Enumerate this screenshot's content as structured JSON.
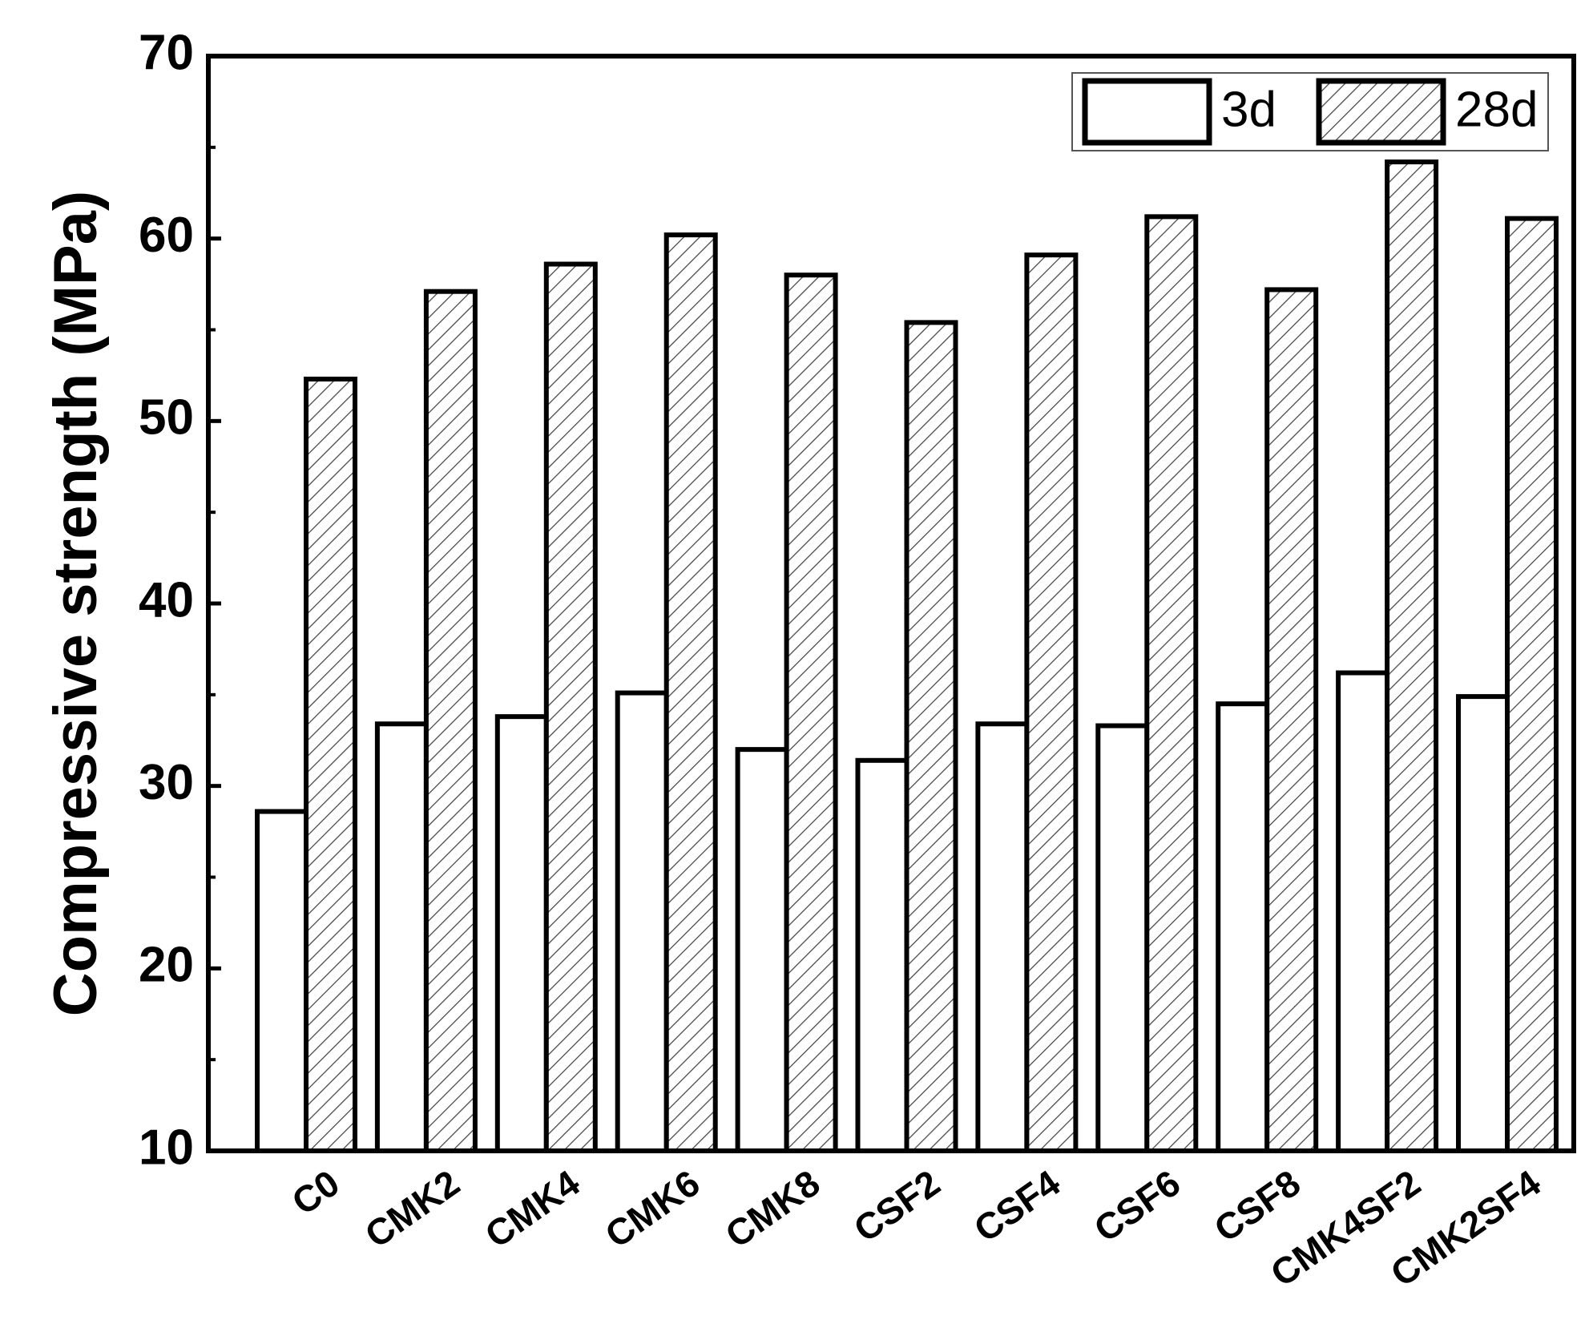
{
  "chart_data": {
    "type": "bar",
    "y_label": "Compressive strength (MPa)",
    "categories": [
      "C0",
      "CMK2",
      "CMK4",
      "CMK6",
      "CMK8",
      "CSF2",
      "CSF4",
      "CSF6",
      "CSF8",
      "CMK4SF2",
      "CMK2SF4"
    ],
    "series": [
      {
        "name": "3d",
        "color": "#ffffff",
        "values": [
          28.6,
          33.4,
          33.8,
          35.1,
          32.0,
          31.4,
          33.4,
          33.3,
          34.5,
          36.2,
          34.9
        ]
      },
      {
        "name": "28d",
        "color": "#ffffff",
        "hatch": true,
        "values": [
          52.3,
          57.1,
          58.6,
          60.2,
          58.0,
          55.4,
          59.1,
          61.2,
          57.2,
          64.2,
          61.1
        ]
      }
    ],
    "ylim": [
      10,
      70
    ],
    "yticks": [
      10,
      20,
      30,
      40,
      50,
      60,
      70
    ],
    "legend": "top-right"
  }
}
